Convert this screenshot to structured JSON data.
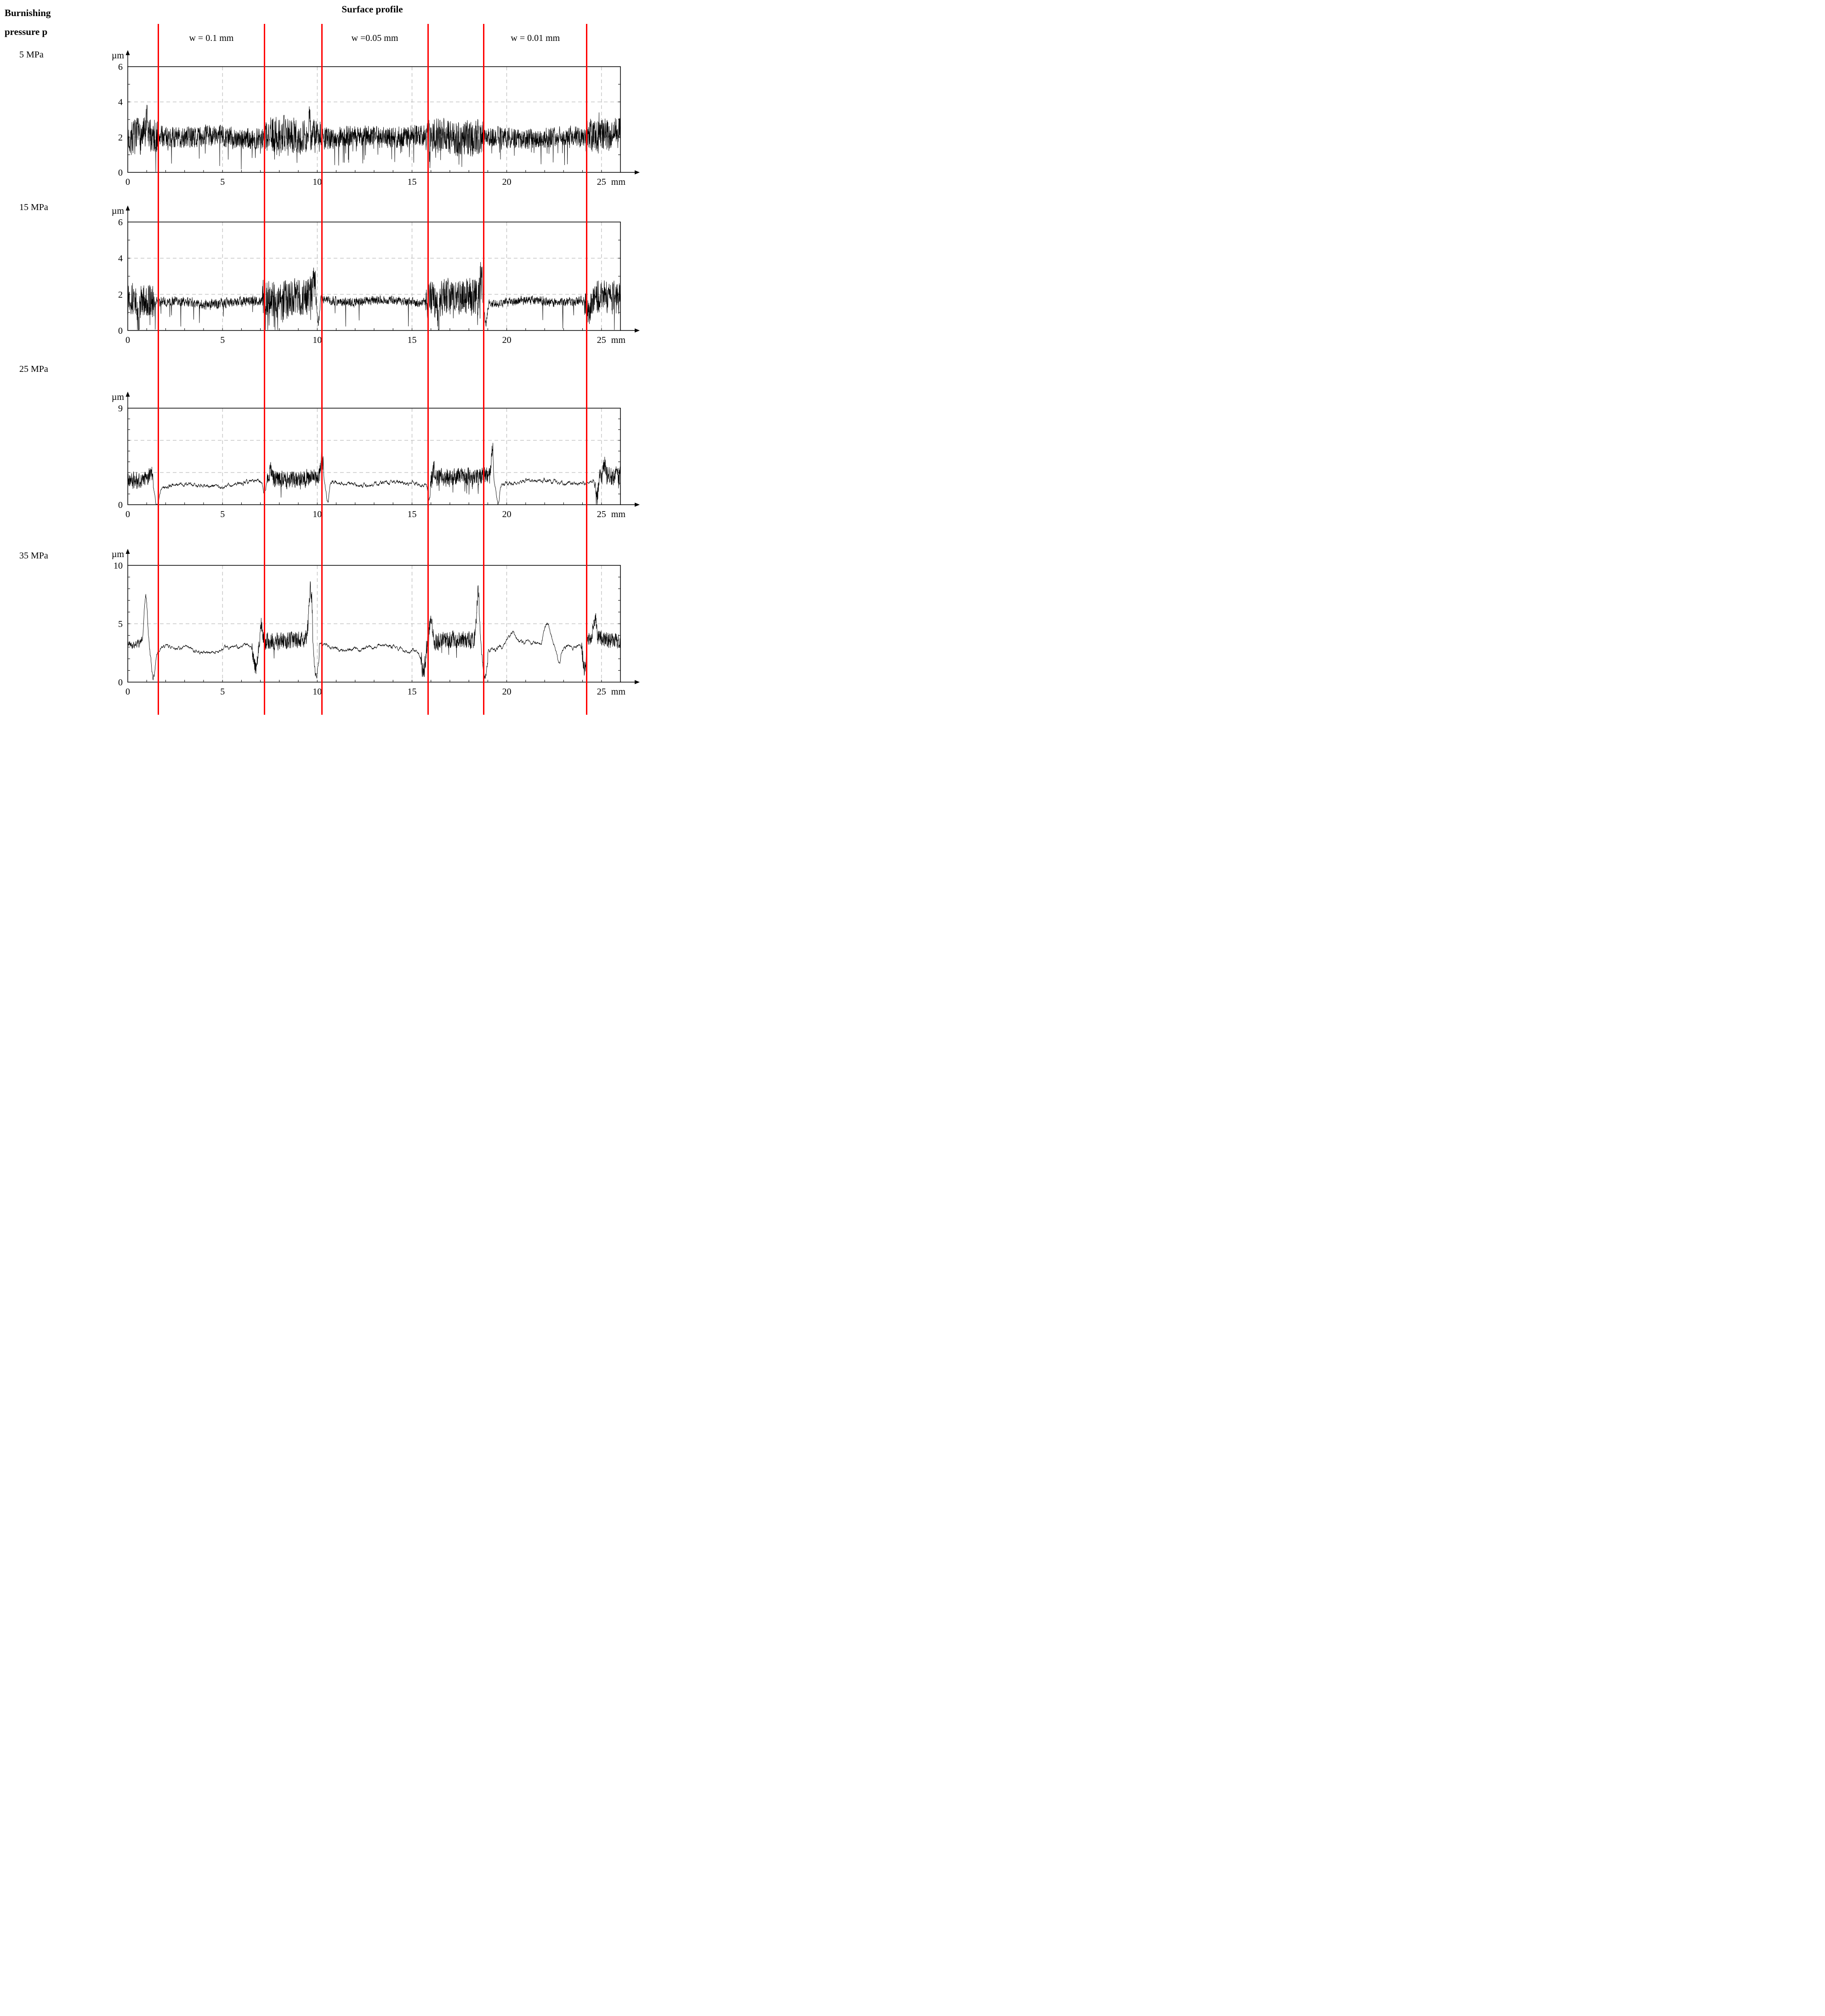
{
  "figure": {
    "left_header": [
      "Burnishing",
      "pressure p"
    ],
    "title": "Surface profile",
    "column_labels": [
      "w = 0.1 mm",
      "w =0.05 mm",
      "w = 0.01 mm"
    ],
    "separator_color": "#ff0000",
    "separator_positions_pct": [
      24.6,
      41.1,
      50.0,
      66.5,
      75.2,
      91.2
    ]
  },
  "chart_data": [
    {
      "type": "line",
      "title": "5 MPa",
      "ylabel": "µm",
      "xlabel": "mm",
      "xlim": [
        0,
        26
      ],
      "ylim": [
        0,
        6
      ],
      "x_ticks": [
        0,
        5,
        10,
        15,
        20,
        25
      ],
      "y_tick_labels": [
        0,
        2,
        4,
        6
      ],
      "x_grid": [
        5,
        10,
        15,
        20,
        25
      ],
      "y_grid": [
        2,
        4
      ],
      "grid": true,
      "seed": 7,
      "step": 0.01,
      "wave_amp": 0.08,
      "segments": [
        {
          "x0": 0,
          "x1": 1.6,
          "m0": 1.9,
          "m1": 2.0,
          "a": 0.5,
          "sm": 0.1,
          "tl": 0.05,
          "wv": 1
        },
        {
          "x0": 1.6,
          "x1": 7.2,
          "m0": 2.0,
          "m1": 2.0,
          "a": 0.3,
          "sm": 0.1,
          "tl": 0.04,
          "wv": 1
        },
        {
          "x0": 7.2,
          "x1": 10.2,
          "m0": 2.15,
          "m1": 2.1,
          "a": 0.5,
          "sm": 0.1,
          "tl": 0.06,
          "wv": 1
        },
        {
          "x0": 10.2,
          "x1": 15.8,
          "m0": 2.0,
          "m1": 2.0,
          "a": 0.3,
          "sm": 0.1,
          "tl": 0.05,
          "wv": 1
        },
        {
          "x0": 15.8,
          "x1": 18.8,
          "m0": 2.0,
          "m1": 2.05,
          "a": 0.5,
          "sm": 0.1,
          "tl": 0.07,
          "wv": 1
        },
        {
          "x0": 18.8,
          "x1": 24.2,
          "m0": 2.0,
          "m1": 2.0,
          "a": 0.28,
          "sm": 0.1,
          "tl": 0.04,
          "wv": 1
        },
        {
          "x0": 24.2,
          "x1": 26,
          "m0": 2.1,
          "m1": 2.2,
          "a": 0.45,
          "sm": 0.1,
          "tl": 0.04,
          "wv": 1
        }
      ],
      "peaks": [
        {
          "x": 1.0,
          "h": 0.8,
          "w": 0.05
        },
        {
          "x": 9.6,
          "h": 0.9,
          "w": 0.05
        },
        {
          "x": 24.9,
          "h": 0.7,
          "w": 0.05
        }
      ]
    },
    {
      "type": "line",
      "title": "15 MPa",
      "ylabel": "µm",
      "xlabel": "mm",
      "xlim": [
        0,
        26
      ],
      "ylim": [
        0,
        6
      ],
      "x_ticks": [
        0,
        5,
        10,
        15,
        20,
        25
      ],
      "y_tick_labels": [
        0,
        2,
        4,
        6
      ],
      "x_grid": [
        5,
        10,
        15,
        20,
        25
      ],
      "y_grid": [
        2,
        4
      ],
      "grid": true,
      "seed": 13,
      "step": 0.01,
      "wave_amp": 0.07,
      "segments": [
        {
          "x0": 0,
          "x1": 1.4,
          "m0": 1.85,
          "m1": 1.6,
          "a": 0.45,
          "sm": 0.1,
          "tl": 0.07,
          "wv": 1
        },
        {
          "x0": 1.4,
          "x1": 7.1,
          "m0": 1.55,
          "m1": 1.6,
          "a": 0.16,
          "sm": 0.3,
          "tl": 0.02,
          "wv": 1
        },
        {
          "x0": 7.1,
          "x1": 9.95,
          "m0": 1.8,
          "m1": 1.85,
          "a": 0.5,
          "sm": 0.1,
          "tl": 0.08,
          "wv": 1
        },
        {
          "x0": 9.95,
          "x1": 15.7,
          "m0": 1.6,
          "m1": 1.65,
          "a": 0.14,
          "sm": 0.3,
          "tl": 0.015,
          "wv": 1
        },
        {
          "x0": 15.7,
          "x1": 18.75,
          "m0": 1.85,
          "m1": 1.95,
          "a": 0.5,
          "sm": 0.1,
          "tl": 0.08,
          "wv": 1
        },
        {
          "x0": 18.75,
          "x1": 24.1,
          "m0": 1.55,
          "m1": 1.6,
          "a": 0.14,
          "sm": 0.3,
          "tl": 0.015,
          "wv": 1
        },
        {
          "x0": 24.1,
          "x1": 26,
          "m0": 1.75,
          "m1": 1.85,
          "a": 0.45,
          "sm": 0.1,
          "tl": 0.05,
          "wv": 1
        }
      ],
      "peaks": [
        {
          "x": 0.55,
          "h": -1.2,
          "w": 0.1
        },
        {
          "x": 9.85,
          "h": 1.2,
          "w": 0.07
        },
        {
          "x": 10.05,
          "h": -1.3,
          "w": 0.08
        },
        {
          "x": 16.4,
          "h": -1.5,
          "w": 0.05
        },
        {
          "x": 18.65,
          "h": 1.9,
          "w": 0.06
        },
        {
          "x": 18.9,
          "h": -1.2,
          "w": 0.08
        },
        {
          "x": 24.35,
          "h": -1.0,
          "w": 0.1
        }
      ]
    },
    {
      "type": "line",
      "title": "25 MPa",
      "ylabel": "µm",
      "xlabel": "mm",
      "xlim": [
        0,
        26
      ],
      "ylim": [
        0,
        9
      ],
      "x_ticks": [
        0,
        5,
        10,
        15,
        20,
        25
      ],
      "y_tick_labels": [
        0,
        9
      ],
      "x_grid": [
        5,
        10,
        15,
        20,
        25
      ],
      "y_grid": [
        3,
        6
      ],
      "grid": true,
      "seed": 21,
      "step": 0.01,
      "wave_amp": 0.16,
      "segments": [
        {
          "x0": 0,
          "x1": 1.35,
          "m0": 2.3,
          "m1": 2.4,
          "a": 0.4,
          "sm": 0.15,
          "tl": 0.04,
          "wv": 0.4
        },
        {
          "x0": 1.35,
          "x1": 7.35,
          "m0": 1.75,
          "m1": 2.05,
          "a": 0.25,
          "sm": 0.8,
          "tl": 0,
          "wv": 1
        },
        {
          "x0": 7.35,
          "x1": 10.35,
          "m0": 2.3,
          "m1": 2.5,
          "a": 0.42,
          "sm": 0.15,
          "tl": 0.05,
          "wv": 0.4
        },
        {
          "x0": 10.35,
          "x1": 15.95,
          "m0": 1.9,
          "m1": 2.1,
          "a": 0.25,
          "sm": 0.8,
          "tl": 0,
          "wv": 1
        },
        {
          "x0": 15.95,
          "x1": 19.3,
          "m0": 2.6,
          "m1": 2.7,
          "a": 0.42,
          "sm": 0.15,
          "tl": 0.05,
          "wv": 0.4
        },
        {
          "x0": 19.3,
          "x1": 24.65,
          "m0": 1.95,
          "m1": 2.15,
          "a": 0.25,
          "sm": 0.8,
          "tl": 0,
          "wv": 1
        },
        {
          "x0": 24.65,
          "x1": 26,
          "m0": 2.6,
          "m1": 2.7,
          "a": 0.45,
          "sm": 0.15,
          "tl": 0.04,
          "wv": 0.4
        }
      ],
      "peaks": [
        {
          "x": 1.2,
          "h": 1.1,
          "w": 0.09
        },
        {
          "x": 1.55,
          "h": -2.1,
          "w": 0.12
        },
        {
          "x": 7.2,
          "h": -1.1,
          "w": 0.1
        },
        {
          "x": 7.55,
          "h": 1.0,
          "w": 0.07
        },
        {
          "x": 10.25,
          "h": 2.6,
          "w": 0.08
        },
        {
          "x": 10.55,
          "h": -1.9,
          "w": 0.1
        },
        {
          "x": 15.9,
          "h": -1.4,
          "w": 0.09
        },
        {
          "x": 16.15,
          "h": 0.9,
          "w": 0.06
        },
        {
          "x": 19.25,
          "h": 2.9,
          "w": 0.07
        },
        {
          "x": 19.55,
          "h": -1.9,
          "w": 0.1
        },
        {
          "x": 24.75,
          "h": -2.0,
          "w": 0.09
        },
        {
          "x": 25.15,
          "h": 1.2,
          "w": 0.07
        }
      ]
    },
    {
      "type": "line",
      "title": "35 MPa",
      "ylabel": "µm",
      "xlabel": "mm",
      "xlim": [
        0,
        26
      ],
      "ylim": [
        0,
        10
      ],
      "x_ticks": [
        0,
        5,
        10,
        15,
        20,
        25
      ],
      "y_tick_labels": [
        0,
        5,
        10
      ],
      "x_grid": [
        5,
        10,
        15,
        20,
        25
      ],
      "y_grid": [
        5
      ],
      "grid": true,
      "seed": 42,
      "step": 0.01,
      "wave_amp": 0.22,
      "segments": [
        {
          "x0": 0,
          "x1": 0.75,
          "m0": 3.3,
          "m1": 3.5,
          "a": 0.3,
          "sm": 0.6,
          "tl": 0,
          "wv": 0.5
        },
        {
          "x0": 0.75,
          "x1": 1.55,
          "m0": 3.0,
          "m1": 2.8,
          "a": 0.2,
          "sm": 0.6,
          "tl": 0,
          "wv": 0.5
        },
        {
          "x0": 1.55,
          "x1": 6.55,
          "m0": 2.9,
          "m1": 2.9,
          "a": 0.4,
          "sm": 0.9,
          "tl": 0,
          "wv": 1
        },
        {
          "x0": 6.55,
          "x1": 9.75,
          "m0": 3.5,
          "m1": 3.6,
          "a": 0.38,
          "sm": 0.15,
          "tl": 0.03,
          "wv": 0.4
        },
        {
          "x0": 9.75,
          "x1": 10.1,
          "m0": 2.1,
          "m1": 2.3,
          "a": 0.2,
          "sm": 0.5,
          "tl": 0,
          "wv": 0.4
        },
        {
          "x0": 10.1,
          "x1": 15.45,
          "m0": 2.9,
          "m1": 3.0,
          "a": 0.4,
          "sm": 0.9,
          "tl": 0,
          "wv": 1
        },
        {
          "x0": 15.45,
          "x1": 18.55,
          "m0": 3.5,
          "m1": 3.6,
          "a": 0.38,
          "sm": 0.15,
          "tl": 0.03,
          "wv": 0.4
        },
        {
          "x0": 18.55,
          "x1": 19.0,
          "m0": 2.3,
          "m1": 2.1,
          "a": 0.2,
          "sm": 0.5,
          "tl": 0,
          "wv": 0.4
        },
        {
          "x0": 19.0,
          "x1": 23.95,
          "m0": 3.0,
          "m1": 3.1,
          "a": 0.45,
          "sm": 0.9,
          "tl": 0,
          "wv": 1
        },
        {
          "x0": 23.95,
          "x1": 26,
          "m0": 3.7,
          "m1": 3.6,
          "a": 0.38,
          "sm": 0.2,
          "tl": 0.02,
          "wv": 0.5
        }
      ],
      "peaks": [
        {
          "x": 0.95,
          "h": 4.5,
          "w": 0.13
        },
        {
          "x": 1.35,
          "h": -2.4,
          "w": 0.14
        },
        {
          "x": 6.75,
          "h": -2.5,
          "w": 0.15
        },
        {
          "x": 7.05,
          "h": 1.6,
          "w": 0.1
        },
        {
          "x": 9.65,
          "h": 4.4,
          "w": 0.12
        },
        {
          "x": 9.95,
          "h": -1.9,
          "w": 0.12
        },
        {
          "x": 15.6,
          "h": -2.6,
          "w": 0.13
        },
        {
          "x": 16.0,
          "h": 1.7,
          "w": 0.1
        },
        {
          "x": 18.5,
          "h": 4.3,
          "w": 0.12
        },
        {
          "x": 18.85,
          "h": -1.7,
          "w": 0.12
        },
        {
          "x": 20.3,
          "h": 0.9,
          "w": 0.3
        },
        {
          "x": 22.15,
          "h": 1.8,
          "w": 0.25
        },
        {
          "x": 22.75,
          "h": -1.3,
          "w": 0.15
        },
        {
          "x": 24.1,
          "h": -2.7,
          "w": 0.12
        },
        {
          "x": 24.65,
          "h": 1.7,
          "w": 0.12
        }
      ]
    }
  ]
}
